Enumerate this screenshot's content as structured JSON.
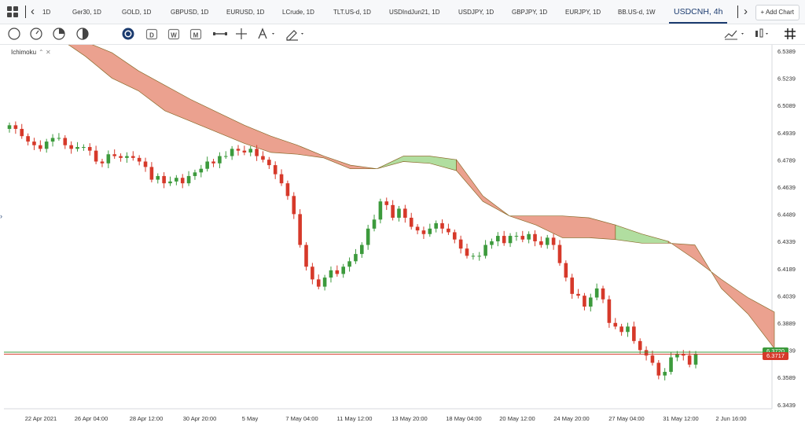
{
  "tabs": [
    {
      "label": "1D"
    },
    {
      "label": "Ger30, 1D"
    },
    {
      "label": "GOLD, 1D"
    },
    {
      "label": "GBPUSD, 1D"
    },
    {
      "label": "EURUSD, 1D"
    },
    {
      "label": "LCrude, 1D"
    },
    {
      "label": "TLT.US-d, 1D"
    },
    {
      "label": "USDIndJun21, 1D"
    },
    {
      "label": "USDJPY, 1D"
    },
    {
      "label": "GBPJPY, 1D"
    },
    {
      "label": "EURJPY, 1D"
    },
    {
      "label": "BB.US-d, 1W"
    },
    {
      "label": "USDCNH, 4h"
    }
  ],
  "add_chart_label": "+ Add Chart",
  "indicator_label": "Ichimoku",
  "indicator_icons": "⌃ ✕",
  "price_tags": {
    "bid": "6.3717",
    "ask": "6.3720"
  },
  "colors": {
    "bull": "#3c9a3c",
    "bear": "#d6392a",
    "bear_cloud": "#e8907b",
    "bull_cloud": "#a3d88f",
    "cloud_edge": "#8a6a2a",
    "bid_line": "#d6392a",
    "ask_line": "#3c9a3c"
  },
  "chart_data": {
    "type": "candlestick",
    "symbol": "USDCNH",
    "timeframe": "4h",
    "indicator": "Ichimoku",
    "ylim": [
      6.34,
      6.545
    ],
    "y_ticks": [
      "6.5389",
      "6.5239",
      "6.5089",
      "6.4939",
      "6.4789",
      "6.4639",
      "6.4489",
      "6.4339",
      "6.4189",
      "6.4039",
      "6.3889",
      "6.3739",
      "6.3589",
      "6.3439"
    ],
    "x_ticks": [
      "22 Apr 2021",
      "26 Apr 04:00",
      "28 Apr 12:00",
      "30 Apr 20:00",
      "5 May",
      "7 May 04:00",
      "11 May 12:00",
      "13 May 20:00",
      "18 May 04:00",
      "20 May 12:00",
      "24 May 20:00",
      "27 May 04:00",
      "31 May 12:00",
      "2 Jun 16:00"
    ],
    "closes": [
      6.498,
      6.496,
      6.492,
      6.489,
      6.487,
      6.485,
      6.489,
      6.491,
      6.491,
      6.487,
      6.485,
      6.486,
      6.486,
      6.484,
      6.478,
      6.477,
      6.482,
      6.481,
      6.48,
      6.481,
      6.48,
      6.478,
      6.475,
      6.468,
      6.47,
      6.466,
      6.467,
      6.469,
      6.466,
      6.47,
      6.472,
      6.474,
      6.478,
      6.477,
      6.481,
      6.481,
      6.485,
      6.484,
      6.483,
      6.485,
      6.481,
      6.479,
      6.476,
      6.471,
      6.466,
      6.459,
      6.449,
      6.432,
      6.42,
      6.413,
      6.409,
      6.414,
      6.418,
      6.416,
      6.42,
      6.423,
      6.427,
      6.432,
      6.441,
      6.446,
      6.456,
      6.454,
      6.447,
      6.452,
      6.447,
      6.442,
      6.44,
      6.438,
      6.441,
      6.444,
      6.441,
      6.439,
      6.435,
      6.43,
      6.426,
      6.426,
      6.426,
      6.432,
      6.434,
      6.437,
      6.433,
      6.437,
      6.437,
      6.435,
      6.438,
      6.434,
      6.432,
      6.436,
      6.432,
      6.422,
      6.414,
      6.405,
      6.404,
      6.398,
      6.403,
      6.408,
      6.402,
      6.389,
      6.387,
      6.384,
      6.387,
      6.379,
      6.374,
      6.371,
      6.367,
      6.36,
      6.362,
      6.37,
      6.372,
      6.371,
      6.366,
      6.372
    ],
    "cloud_top": [
      6.547,
      6.544,
      6.538,
      6.528,
      6.52,
      6.512,
      6.505,
      6.498,
      6.492,
      6.487,
      6.481,
      6.476,
      6.474,
      6.481,
      6.481,
      6.479,
      6.459,
      6.448,
      6.448,
      6.448,
      6.447,
      6.443,
      6.438,
      6.434,
      6.424,
      6.413,
      6.403,
      6.395
    ],
    "cloud_bottom": [
      6.546,
      6.536,
      6.524,
      6.517,
      6.506,
      6.5,
      6.494,
      6.488,
      6.483,
      6.482,
      6.48,
      6.474,
      6.474,
      6.478,
      6.477,
      6.473,
      6.456,
      6.448,
      6.443,
      6.436,
      6.436,
      6.435,
      6.433,
      6.433,
      6.432,
      6.408,
      6.394,
      6.375
    ],
    "last_bid": 6.3717,
    "last_ask": 6.372
  }
}
